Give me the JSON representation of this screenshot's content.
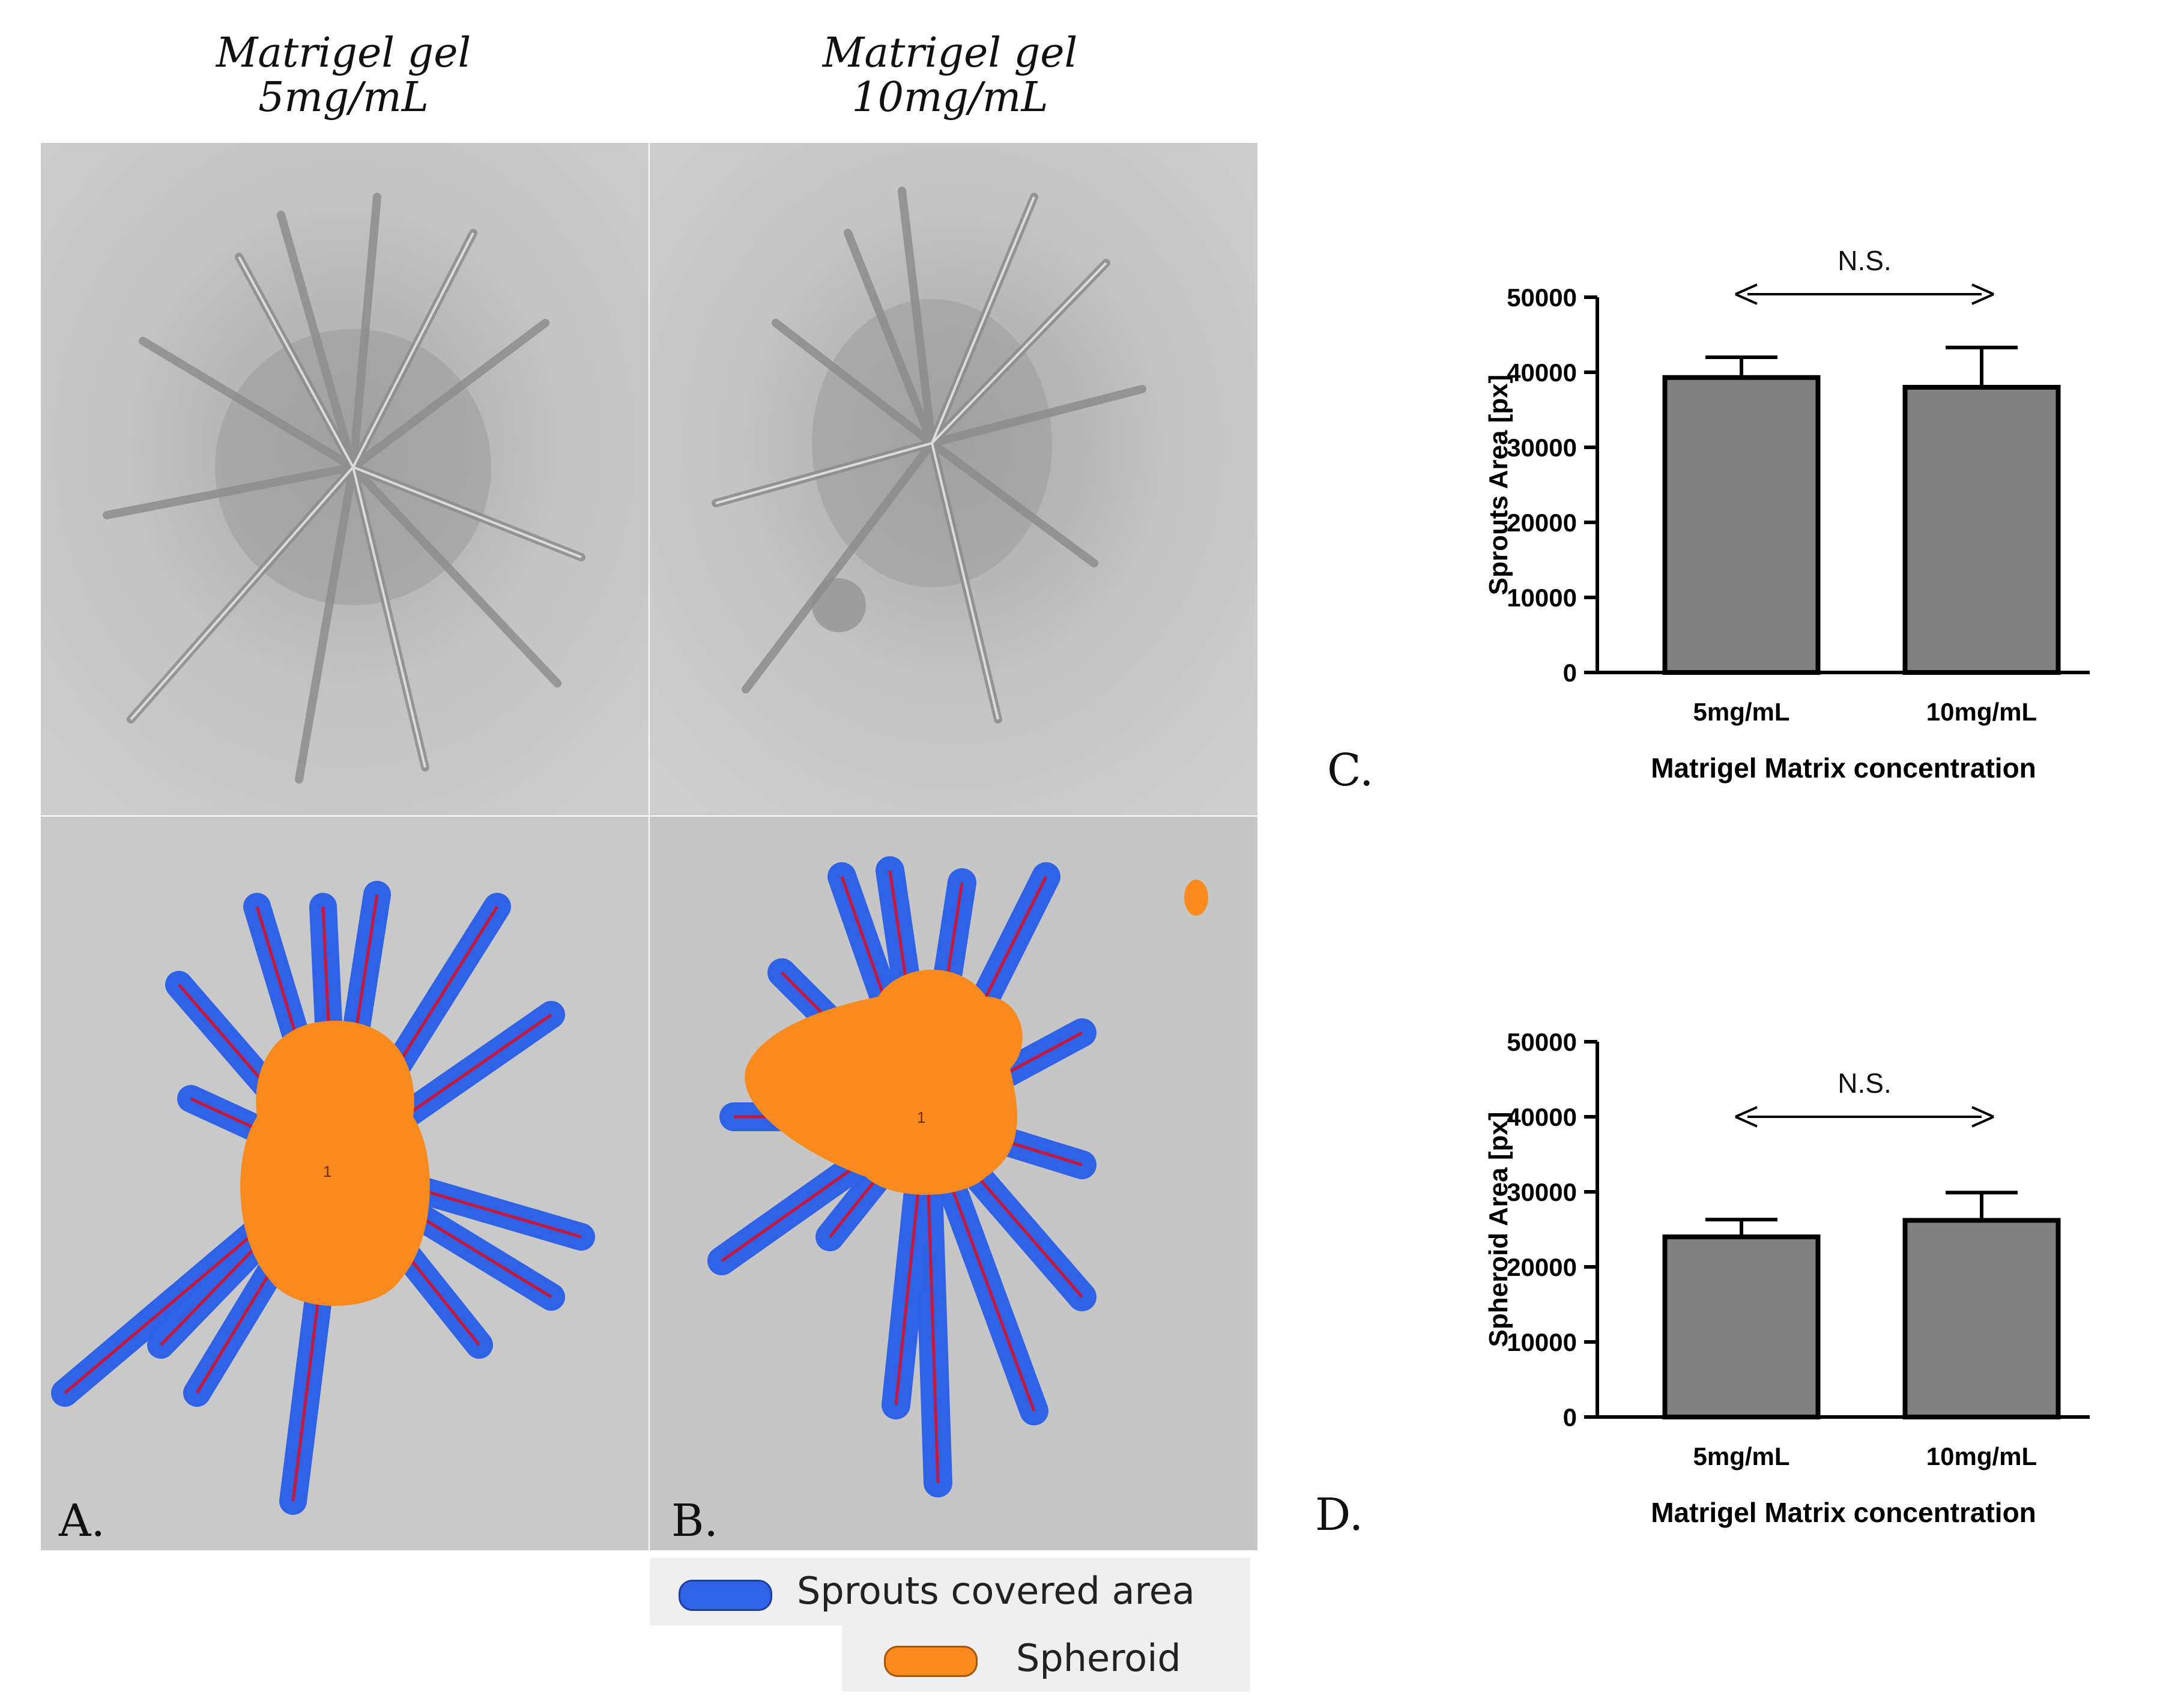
{
  "titles": {
    "col_a_line1": "Matrigel gel",
    "col_a_line2": "5mg/mL",
    "col_b_line1": "Matrigel gel",
    "col_b_line2": "10mg/mL"
  },
  "panel_labels": {
    "a": "A.",
    "b": "B.",
    "c": "C.",
    "d": "D."
  },
  "legend": {
    "items": [
      {
        "label": "Sprouts covered area",
        "color": "#2f62e6"
      },
      {
        "label": "Spheroid",
        "color": "#f98a1e"
      }
    ]
  },
  "colors": {
    "bar_fill": "#808080",
    "bar_stroke": "#000000",
    "sprout_blue": "#2f62e6",
    "spheroid_orange": "#f98a1e",
    "trace_red": "#c8183a",
    "micro_bg": "#c9c9c9"
  },
  "spheroid_index_label": "1",
  "chart_data": [
    {
      "type": "bar",
      "categories": [
        "5mg/mL",
        "10mg/mL"
      ],
      "values": [
        39300,
        38000
      ],
      "errors": [
        2700,
        5300
      ],
      "xlabel": "Matrigel Matrix concentration",
      "ylabel": "Sprouts Area [px]",
      "ylim": [
        0,
        50000
      ],
      "yticks": [
        "0",
        "10000",
        "20000",
        "30000",
        "40000",
        "50000"
      ],
      "annotation": "N.S."
    },
    {
      "type": "bar",
      "categories": [
        "5mg/mL",
        "10mg/mL"
      ],
      "values": [
        24000,
        26200
      ],
      "errors": [
        2300,
        3700
      ],
      "xlabel": "Matrigel Matrix concentration",
      "ylabel": "Spheroid Area [px]",
      "ylim": [
        0,
        50000
      ],
      "yticks": [
        "0",
        "10000",
        "20000",
        "30000",
        "40000",
        "50000"
      ],
      "annotation": "N.S."
    }
  ]
}
